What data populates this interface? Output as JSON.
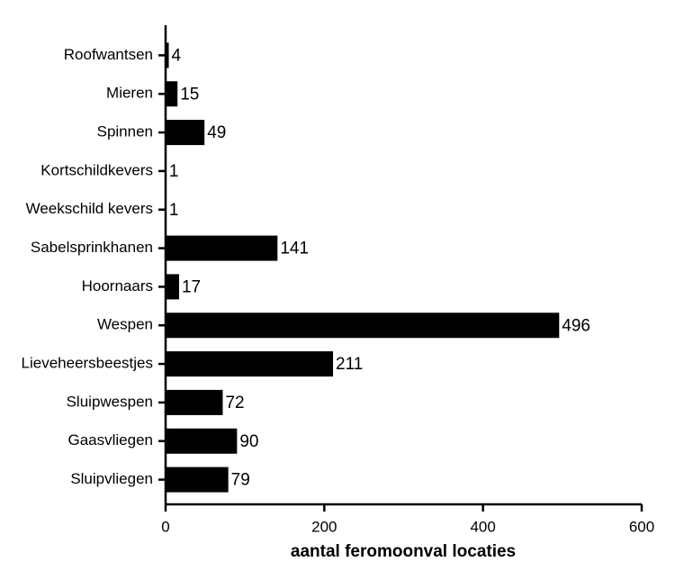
{
  "chart_data": {
    "type": "bar",
    "orientation": "horizontal",
    "categories": [
      "Roofwantsen",
      "Mieren",
      "Spinnen",
      "Kortschildkevers",
      "Weekschild kevers",
      "Sabelsprinkhanen",
      "Hoornaars",
      "Wespen",
      "Lieveheersbeestjes",
      "Sluipwespen",
      "Gaasvliegen",
      "Sluipvliegen"
    ],
    "values": [
      4,
      15,
      49,
      1,
      1,
      141,
      17,
      496,
      211,
      72,
      90,
      79
    ],
    "color": "#000000",
    "x_label": "aantal feromoonval locaties",
    "xlim": [
      0,
      600
    ],
    "xticks": [
      0,
      200,
      400,
      600
    ],
    "grid": false
  }
}
